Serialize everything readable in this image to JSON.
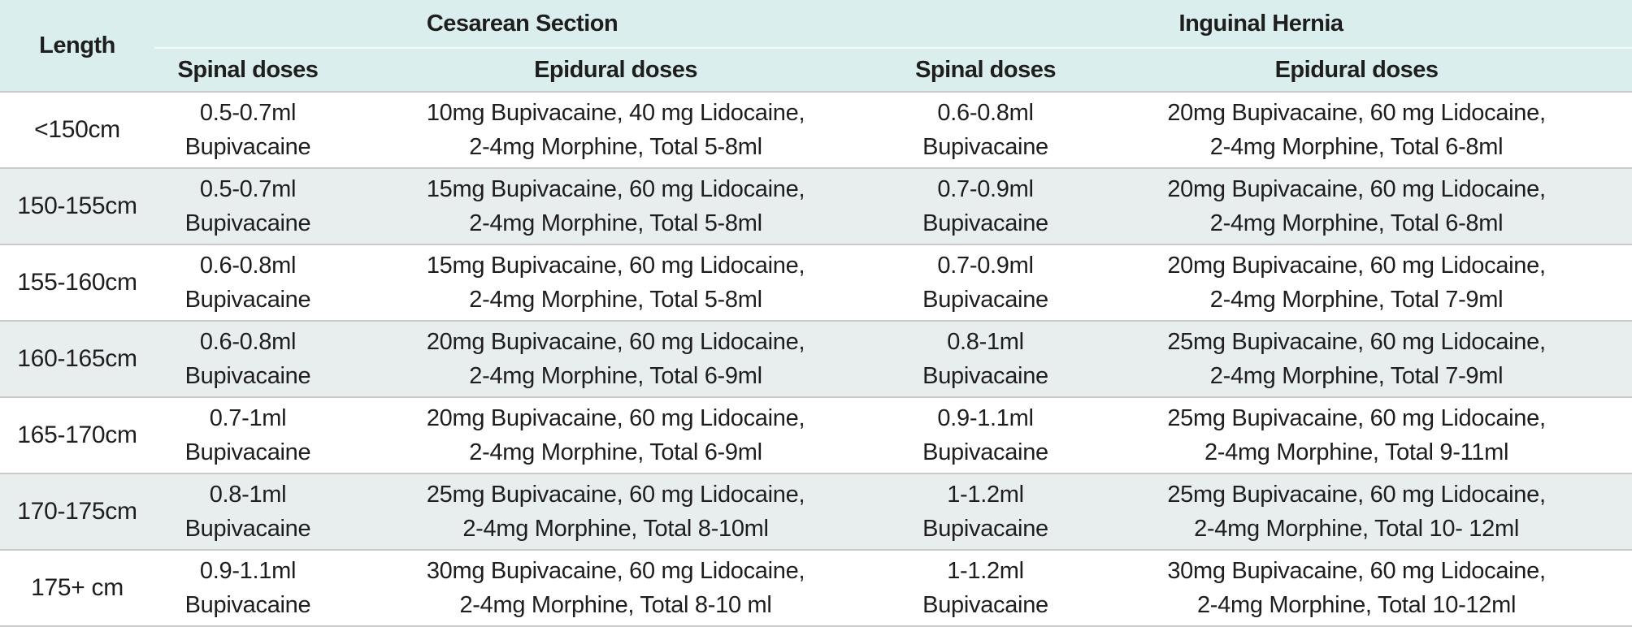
{
  "header": {
    "length": "Length",
    "group_cesarean": "Cesarean Section",
    "group_hernia": "Inguinal Hernia",
    "cs_spinal": "Spinal doses",
    "cs_epidural": "Epidural doses",
    "ih_spinal": "Spinal doses",
    "ih_epidural": "Epidural doses"
  },
  "rows": [
    {
      "length": "<150cm",
      "cs_spinal": [
        "0.5-0.7ml",
        "Bupivacaine"
      ],
      "cs_epidural": [
        "10mg Bupivacaine, 40 mg Lidocaine,",
        "2-4mg Morphine, Total 5-8ml"
      ],
      "ih_spinal": [
        "0.6-0.8ml",
        "Bupivacaine"
      ],
      "ih_epidural": [
        "20mg Bupivacaine, 60 mg Lidocaine,",
        "2-4mg Morphine, Total 6-8ml"
      ]
    },
    {
      "length": "150-155cm",
      "cs_spinal": [
        "0.5-0.7ml",
        "Bupivacaine"
      ],
      "cs_epidural": [
        "15mg Bupivacaine, 60 mg Lidocaine,",
        "2-4mg Morphine, Total 5-8ml"
      ],
      "ih_spinal": [
        "0.7-0.9ml",
        "Bupivacaine"
      ],
      "ih_epidural": [
        "20mg Bupivacaine, 60 mg Lidocaine,",
        "2-4mg Morphine, Total 6-8ml"
      ]
    },
    {
      "length": "155-160cm",
      "cs_spinal": [
        "0.6-0.8ml",
        "Bupivacaine"
      ],
      "cs_epidural": [
        "15mg Bupivacaine, 60 mg Lidocaine,",
        "2-4mg Morphine, Total 5-8ml"
      ],
      "ih_spinal": [
        "0.7-0.9ml",
        "Bupivacaine"
      ],
      "ih_epidural": [
        "20mg Bupivacaine, 60 mg Lidocaine,",
        "2-4mg Morphine, Total 7-9ml"
      ]
    },
    {
      "length": "160-165cm",
      "cs_spinal": [
        "0.6-0.8ml",
        "Bupivacaine"
      ],
      "cs_epidural": [
        "20mg Bupivacaine, 60 mg Lidocaine,",
        "2-4mg Morphine, Total 6-9ml"
      ],
      "ih_spinal": [
        "0.8-1ml",
        "Bupivacaine"
      ],
      "ih_epidural": [
        "25mg Bupivacaine, 60 mg Lidocaine,",
        "2-4mg Morphine, Total 7-9ml"
      ]
    },
    {
      "length": "165-170cm",
      "cs_spinal": [
        "0.7-1ml",
        "Bupivacaine"
      ],
      "cs_epidural": [
        "20mg Bupivacaine, 60 mg Lidocaine,",
        "2-4mg Morphine, Total 6-9ml"
      ],
      "ih_spinal": [
        "0.9-1.1ml",
        "Bupivacaine"
      ],
      "ih_epidural": [
        "25mg Bupivacaine, 60 mg Lidocaine,",
        "2-4mg Morphine, Total 9-11ml"
      ]
    },
    {
      "length": "170-175cm",
      "cs_spinal": [
        "0.8-1ml",
        "Bupivacaine"
      ],
      "cs_epidural": [
        "25mg Bupivacaine, 60 mg Lidocaine,",
        "2-4mg Morphine, Total 8-10ml"
      ],
      "ih_spinal": [
        "1-1.2ml",
        "Bupivacaine"
      ],
      "ih_epidural": [
        "25mg Bupivacaine, 60 mg  Lidocaine,",
        "2-4mg Morphine, Total 10-  12ml"
      ]
    },
    {
      "length": "175+ cm",
      "cs_spinal": [
        "0.9-1.1ml",
        "Bupivacaine"
      ],
      "cs_epidural": [
        "30mg Bupivacaine, 60 mg Lidocaine,",
        "2-4mg Morphine, Total 8-10 ml"
      ],
      "ih_spinal": [
        "1-1.2ml",
        "Bupivacaine"
      ],
      "ih_epidural": [
        "30mg Bupivacaine, 60 mg Lidocaine,",
        "2-4mg Morphine, Total 10-12ml"
      ]
    }
  ],
  "colors": {
    "header_bg": "#d9eeed",
    "alt_row_bg": "#e8edee",
    "row_border": "#c9c9c9"
  }
}
